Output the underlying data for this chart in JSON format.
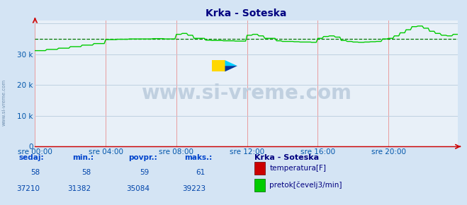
{
  "title": "Krka - Soteska",
  "bg_color": "#d4e4f4",
  "plot_bg_color": "#e8f0f8",
  "grid_color_h": "#b8ccdc",
  "grid_color_v": "#e89090",
  "title_color": "#000080",
  "axis_color": "#cc0000",
  "tick_color": "#0055aa",
  "watermark_text": "www.si-vreme.com",
  "watermark_color": "#c0d0e0",
  "watermark_fontsize": 20,
  "ymax": 41000,
  "ymin": 0,
  "yticks": [
    0,
    10000,
    20000,
    30000
  ],
  "ytick_labels": [
    "0",
    "10 k",
    "20 k",
    "30 k"
  ],
  "xtick_labels": [
    "sre 00:00",
    "sre 04:00",
    "sre 08:00",
    "sre 12:00",
    "sre 16:00",
    "sre 20:00"
  ],
  "xtick_positions": [
    0,
    48,
    96,
    144,
    192,
    240
  ],
  "n_points": 288,
  "temp_value": 58,
  "temp_min": 58,
  "temp_avg": 59,
  "temp_max": 61,
  "flow_value": 37210,
  "flow_min": 31382,
  "flow_avg": 35084,
  "flow_max": 39223,
  "avg_line_value": 35084,
  "legend_title": "Krka - Soteska",
  "legend_temp_label": "temperatura[F]",
  "legend_flow_label": "pretok[čevelj3/min]",
  "temp_color": "#cc0000",
  "flow_color": "#00cc00",
  "avg_line_color": "#007700",
  "table_header_color": "#0044cc",
  "table_value_color": "#0044aa",
  "sidebar_text": "www.si-vreme.com",
  "sidebar_color": "#7090b0"
}
